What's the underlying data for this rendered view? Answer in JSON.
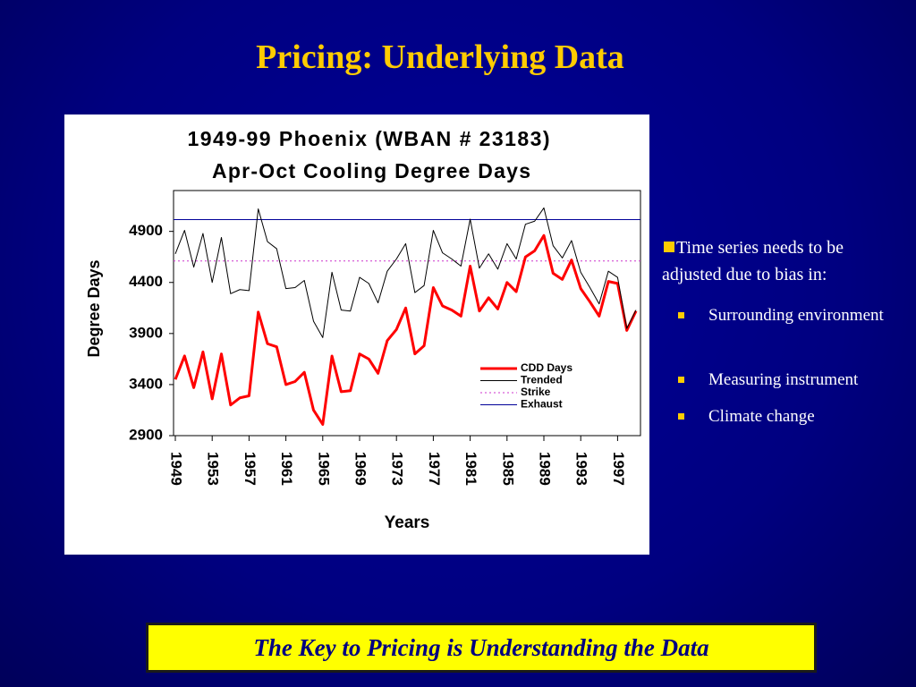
{
  "slide_title": "Pricing: Underlying Data",
  "chart_data": {
    "type": "line",
    "title": "1949-99 Phoenix (WBAN # 23183)",
    "subtitle": "Apr-Oct Cooling Degree Days",
    "y_label": "Degree Days",
    "x_label": "Years",
    "x": [
      1949,
      1950,
      1951,
      1952,
      1953,
      1954,
      1955,
      1956,
      1957,
      1958,
      1959,
      1960,
      1961,
      1962,
      1963,
      1964,
      1965,
      1966,
      1967,
      1968,
      1969,
      1970,
      1971,
      1972,
      1973,
      1974,
      1975,
      1976,
      1977,
      1978,
      1979,
      1980,
      1981,
      1982,
      1983,
      1984,
      1985,
      1986,
      1987,
      1988,
      1989,
      1990,
      1991,
      1992,
      1993,
      1994,
      1995,
      1996,
      1997,
      1998,
      1999
    ],
    "series": [
      {
        "name": "CDD Days",
        "color": "#ff0000",
        "values": [
          3450,
          3680,
          3370,
          3720,
          3260,
          3700,
          3200,
          3270,
          3290,
          4110,
          3800,
          3770,
          3400,
          3430,
          3520,
          3150,
          3010,
          3680,
          3330,
          3340,
          3700,
          3650,
          3510,
          3830,
          3940,
          4150,
          3700,
          3780,
          4350,
          4170,
          4130,
          4070,
          4560,
          4120,
          4250,
          4140,
          4400,
          4310,
          4650,
          4710,
          4860,
          4490,
          4430,
          4620,
          4340,
          4210,
          4070,
          4410,
          4390,
          3930,
          4120
        ]
      },
      {
        "name": "Trended",
        "color": "#000000",
        "values": [
          4680,
          4910,
          4550,
          4880,
          4400,
          4840,
          4290,
          4330,
          4320,
          5120,
          4800,
          4730,
          4340,
          4350,
          4420,
          4020,
          3860,
          4500,
          4130,
          4120,
          4450,
          4390,
          4200,
          4510,
          4630,
          4780,
          4300,
          4370,
          4910,
          4690,
          4630,
          4560,
          5020,
          4540,
          4680,
          4530,
          4780,
          4630,
          4970,
          5000,
          5130,
          4760,
          4640,
          4810,
          4500,
          4350,
          4190,
          4510,
          4450,
          3950,
          4130
        ]
      }
    ],
    "levels": [
      {
        "name": "Strike",
        "color": "#cc33cc",
        "dashed": true,
        "value": 4610
      },
      {
        "name": "Exhaust",
        "color": "#000099",
        "dashed": false,
        "value": 5015
      }
    ],
    "xlim": [
      1949,
      1999
    ],
    "xticks": [
      1949,
      1953,
      1957,
      1961,
      1965,
      1969,
      1973,
      1977,
      1981,
      1985,
      1989,
      1993,
      1997
    ],
    "ylim": [
      2900,
      5300
    ],
    "yticks": [
      2900,
      3400,
      3900,
      4400,
      4900
    ],
    "grid": false,
    "legend": "lower right"
  },
  "bullets": {
    "main": "Time series needs to be adjusted due to bias in:",
    "items": [
      "Surrounding environment",
      "Measuring instrument",
      "Climate change"
    ]
  },
  "footer": "The Key to Pricing is Understanding the Data"
}
